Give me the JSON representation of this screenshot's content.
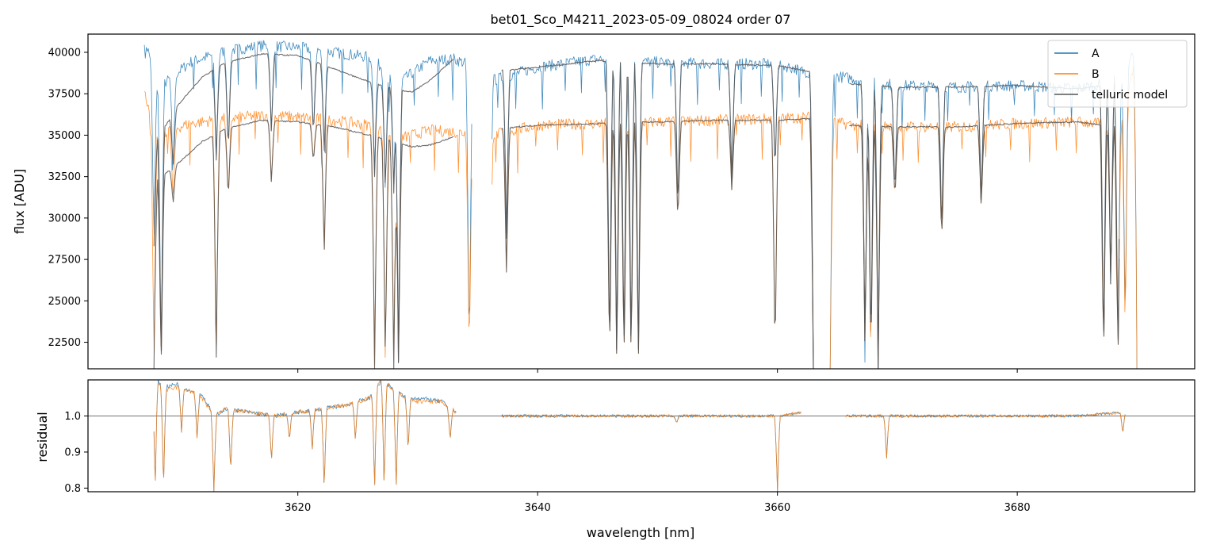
{
  "chart_data": [
    {
      "type": "line",
      "title": "bet01_Sco_M4211_2023-05-09_08024  order 07",
      "xlabel": "",
      "ylabel": "flux [ADU]",
      "xlim": [
        3602.5,
        3694.8
      ],
      "ylim": [
        20900,
        41100
      ],
      "x_ticks": [
        3620,
        3640,
        3660,
        3680
      ],
      "x_tick_labels": [
        "",
        "",
        "",
        ""
      ],
      "y_ticks": [
        22500,
        25000,
        27500,
        30000,
        32500,
        35000,
        37500,
        40000
      ],
      "y_tick_labels": [
        "22500",
        "25000",
        "27500",
        "30000",
        "32500",
        "35000",
        "37500",
        "40000"
      ],
      "legend_position": "top-right",
      "series": [
        {
          "name": "A",
          "color": "#1f77b4",
          "segments": [
            {
              "x": [
                3607.2,
                3608.5,
                3611,
                3614,
                3617,
                3620,
                3623,
                3626,
                3628.5,
                3631,
                3633,
                3634.5
              ],
              "y": [
                40800,
                37900,
                39400,
                40100,
                40400,
                40300,
                40000,
                39700,
                38200,
                39500,
                39600,
                39200
              ]
            },
            {
              "x": [
                3636.2,
                3640,
                3645,
                3650,
                3655,
                3660,
                3663
              ],
              "y": [
                38300,
                39100,
                39600,
                39400,
                39300,
                39300,
                38700
              ]
            },
            {
              "x": [
                3664.4,
                3666.5,
                3670,
                3675,
                3680,
                3685,
                3688.5,
                3690
              ],
              "y": [
                38600,
                38400,
                38000,
                37900,
                38000,
                37800,
                38300,
                40500
              ]
            }
          ]
        },
        {
          "name": "B",
          "color": "#ff7f0e",
          "segments": [
            {
              "x": [
                3607.2,
                3608.5,
                3611,
                3614,
                3617,
                3620,
                3623,
                3626,
                3628.5,
                3631,
                3633,
                3634.5
              ],
              "y": [
                37500,
                35100,
                35700,
                36000,
                36200,
                36100,
                35900,
                35600,
                34800,
                35300,
                35200,
                35100
              ]
            },
            {
              "x": [
                3636.2,
                3640,
                3645,
                3650,
                3655,
                3660,
                3663
              ],
              "y": [
                35000,
                35600,
                35700,
                35800,
                35900,
                36000,
                36100
              ]
            },
            {
              "x": [
                3664.4,
                3666.5,
                3670,
                3675,
                3680,
                3685,
                3688.5,
                3690
              ],
              "y": [
                35800,
                35600,
                35500,
                35500,
                35700,
                35800,
                35600,
                40000
              ]
            }
          ]
        },
        {
          "name": "telluric model",
          "color": "#555555",
          "segments": [
            {
              "x": [
                3608,
                3609,
                3610,
                3612,
                3614,
                3617,
                3620,
                3623,
                3626,
                3628,
                3629.5,
                3631,
                3633
              ],
              "y": [
                34500,
                35600,
                36800,
                38500,
                39400,
                39900,
                39800,
                39000,
                38200,
                37800,
                37600,
                38300,
                39600
              ]
            },
            {
              "x": [
                3608,
                3609,
                3610,
                3612,
                3614,
                3617,
                3620,
                3623,
                3626,
                3628,
                3629.5,
                3631,
                3633
              ],
              "y": [
                32200,
                32700,
                33300,
                34600,
                35400,
                35900,
                35800,
                35500,
                35000,
                34600,
                34300,
                34400,
                34900
              ]
            },
            {
              "x": [
                3637,
                3640,
                3645,
                3650,
                3655,
                3660,
                3663
              ],
              "y": [
                38900,
                39100,
                39500,
                39300,
                39300,
                39200,
                38800
              ]
            },
            {
              "x": [
                3637,
                3640,
                3645,
                3650,
                3655,
                3660,
                3663
              ],
              "y": [
                35400,
                35600,
                35700,
                35800,
                35900,
                35900,
                36000
              ]
            },
            {
              "x": [
                3666,
                3670,
                3675,
                3680,
                3685,
                3688.5
              ],
              "y": [
                38100,
                37900,
                37900,
                38000,
                37800,
                38100
              ]
            },
            {
              "x": [
                3666,
                3670,
                3675,
                3680,
                3685,
                3688.5
              ],
              "y": [
                35600,
                35500,
                35500,
                35700,
                35800,
                35500
              ]
            }
          ]
        }
      ],
      "absorption_lines": [
        {
          "x": 3606.8,
          "depth_a": 20900,
          "depth_b": 20900
        },
        {
          "x": 3608.0,
          "depth_a": 28300,
          "depth_b": 20900
        },
        {
          "x": 3608.6,
          "depth_a": 20900,
          "depth_b": 20900
        },
        {
          "x": 3609.6,
          "depth_a": 33000,
          "depth_b": 30800
        },
        {
          "x": 3613.2,
          "depth_a": 33500,
          "depth_b": 21600
        },
        {
          "x": 3614.2,
          "depth_a": 33800,
          "depth_b": 31000
        },
        {
          "x": 3617.8,
          "depth_a": 35000,
          "depth_b": 32000
        },
        {
          "x": 3621.3,
          "depth_a": 34800,
          "depth_b": 33300
        },
        {
          "x": 3622.2,
          "depth_a": 33800,
          "depth_b": 27700
        },
        {
          "x": 3626.4,
          "depth_a": 32500,
          "depth_b": 20900
        },
        {
          "x": 3627.3,
          "depth_a": 31500,
          "depth_b": 20900
        },
        {
          "x": 3628.0,
          "depth_a": 31500,
          "depth_b": 20900
        },
        {
          "x": 3628.4,
          "depth_a": 20900,
          "depth_b": 20900
        },
        {
          "x": 3634.3,
          "depth_a": 20900,
          "depth_b": 20900
        },
        {
          "x": 3636.0,
          "depth_a": 20900,
          "depth_b": 20900
        },
        {
          "x": 3637.4,
          "depth_a": 28500,
          "depth_b": 26500
        },
        {
          "x": 3646.0,
          "depth_a": 20900,
          "depth_b": 20900
        },
        {
          "x": 3646.6,
          "depth_a": 20900,
          "depth_b": 20900
        },
        {
          "x": 3647.2,
          "depth_a": 20900,
          "depth_b": 20900
        },
        {
          "x": 3647.8,
          "depth_a": 20900,
          "depth_b": 20900
        },
        {
          "x": 3648.4,
          "depth_a": 20900,
          "depth_b": 20900
        },
        {
          "x": 3651.7,
          "depth_a": 30000,
          "depth_b": 29500
        },
        {
          "x": 3656.2,
          "depth_a": 32000,
          "depth_b": 31500
        },
        {
          "x": 3659.8,
          "depth_a": 32500,
          "depth_b": 20900
        },
        {
          "x": 3663.0,
          "depth_a": 20900,
          "depth_b": 20900
        },
        {
          "x": 3664.4,
          "depth_a": 20900,
          "depth_b": 20900
        },
        {
          "x": 3667.3,
          "depth_a": 20900,
          "depth_b": 22400
        },
        {
          "x": 3667.8,
          "depth_a": 20900,
          "depth_b": 20900
        },
        {
          "x": 3668.4,
          "depth_a": 20900,
          "depth_b": 20900
        },
        {
          "x": 3669.8,
          "depth_a": 31000,
          "depth_b": 31000
        },
        {
          "x": 3673.7,
          "depth_a": 28600,
          "depth_b": 28300
        },
        {
          "x": 3677.0,
          "depth_a": 30500,
          "depth_b": 30500
        },
        {
          "x": 3687.2,
          "depth_a": 20900,
          "depth_b": 20900
        },
        {
          "x": 3687.8,
          "depth_a": 25000,
          "depth_b": 26000
        },
        {
          "x": 3688.4,
          "depth_a": 20900,
          "depth_b": 20900
        },
        {
          "x": 3689.0,
          "depth_a": 23000,
          "depth_b": 22500
        },
        {
          "x": 3690.0,
          "depth_a": 20900,
          "depth_b": 20900
        }
      ]
    },
    {
      "type": "line",
      "title": "",
      "xlabel": "wavelength [nm]",
      "ylabel": "residual",
      "xlim": [
        3602.5,
        3694.8
      ],
      "ylim": [
        0.79,
        1.1
      ],
      "x_ticks": [
        3620,
        3640,
        3660,
        3680
      ],
      "x_tick_labels": [
        "3620",
        "3640",
        "3660",
        "3680"
      ],
      "y_ticks": [
        0.8,
        0.9,
        1.0
      ],
      "y_tick_labels": [
        "0.8",
        "0.9",
        "1.0"
      ],
      "reference_line": 1.0,
      "series": [
        {
          "name": "A",
          "color": "#1f77b4",
          "segments": [
            {
              "x": [
                3608,
                3609,
                3610,
                3611,
                3612,
                3613,
                3614,
                3616,
                3618,
                3620,
                3622,
                3624,
                3626,
                3627,
                3629,
                3630,
                3632,
                3633.2
              ],
              "y": [
                1.1,
                1.08,
                1.09,
                1.07,
                1.06,
                1.0,
                1.02,
                1.01,
                1.0,
                1.01,
                1.02,
                1.03,
                1.05,
                1.1,
                1.05,
                1.05,
                1.04,
                1.01
              ]
            },
            {
              "x": [
                3637,
                3640,
                3645,
                3650,
                3655,
                3660,
                3662
              ],
              "y": [
                1.0,
                1.0,
                1.0,
                1.0,
                1.0,
                1.0,
                1.01
              ]
            },
            {
              "x": [
                3665.7,
                3670,
                3675,
                3680,
                3685,
                3689
              ],
              "y": [
                1.0,
                1.0,
                1.0,
                1.0,
                1.0,
                1.01
              ]
            }
          ]
        },
        {
          "name": "B",
          "color": "#ff7f0e",
          "segments": [
            {
              "x": [
                3608,
                3609,
                3610,
                3611,
                3612,
                3613,
                3614,
                3616,
                3618,
                3620,
                3622,
                3624,
                3626,
                3627,
                3629,
                3630,
                3632,
                3633.2
              ],
              "y": [
                1.1,
                1.07,
                1.08,
                1.07,
                1.05,
                1.0,
                1.02,
                1.01,
                1.0,
                1.01,
                1.02,
                1.03,
                1.05,
                1.1,
                1.05,
                1.04,
                1.04,
                1.01
              ]
            },
            {
              "x": [
                3637,
                3640,
                3645,
                3650,
                3655,
                3660,
                3662
              ],
              "y": [
                1.0,
                1.0,
                1.0,
                1.0,
                1.0,
                1.0,
                1.01
              ]
            },
            {
              "x": [
                3665.7,
                3670,
                3675,
                3680,
                3685,
                3689
              ],
              "y": [
                1.0,
                1.0,
                1.0,
                1.0,
                1.0,
                1.01
              ]
            }
          ]
        }
      ],
      "dips": [
        {
          "x": 3608.1,
          "min": 0.79
        },
        {
          "x": 3608.8,
          "min": 0.79
        },
        {
          "x": 3610.3,
          "min": 0.95
        },
        {
          "x": 3611.6,
          "min": 0.93
        },
        {
          "x": 3613.0,
          "min": 0.79
        },
        {
          "x": 3614.4,
          "min": 0.84
        },
        {
          "x": 3617.8,
          "min": 0.87
        },
        {
          "x": 3619.3,
          "min": 0.93
        },
        {
          "x": 3621.2,
          "min": 0.9
        },
        {
          "x": 3622.2,
          "min": 0.79
        },
        {
          "x": 3624.8,
          "min": 0.93
        },
        {
          "x": 3626.4,
          "min": 0.79
        },
        {
          "x": 3627.2,
          "min": 0.79
        },
        {
          "x": 3628.2,
          "min": 0.79
        },
        {
          "x": 3629.2,
          "min": 0.9
        },
        {
          "x": 3632.7,
          "min": 0.93
        },
        {
          "x": 3651.6,
          "min": 0.98
        },
        {
          "x": 3660.0,
          "min": 0.79
        },
        {
          "x": 3669.1,
          "min": 0.88
        },
        {
          "x": 3688.8,
          "min": 0.95
        }
      ]
    }
  ]
}
